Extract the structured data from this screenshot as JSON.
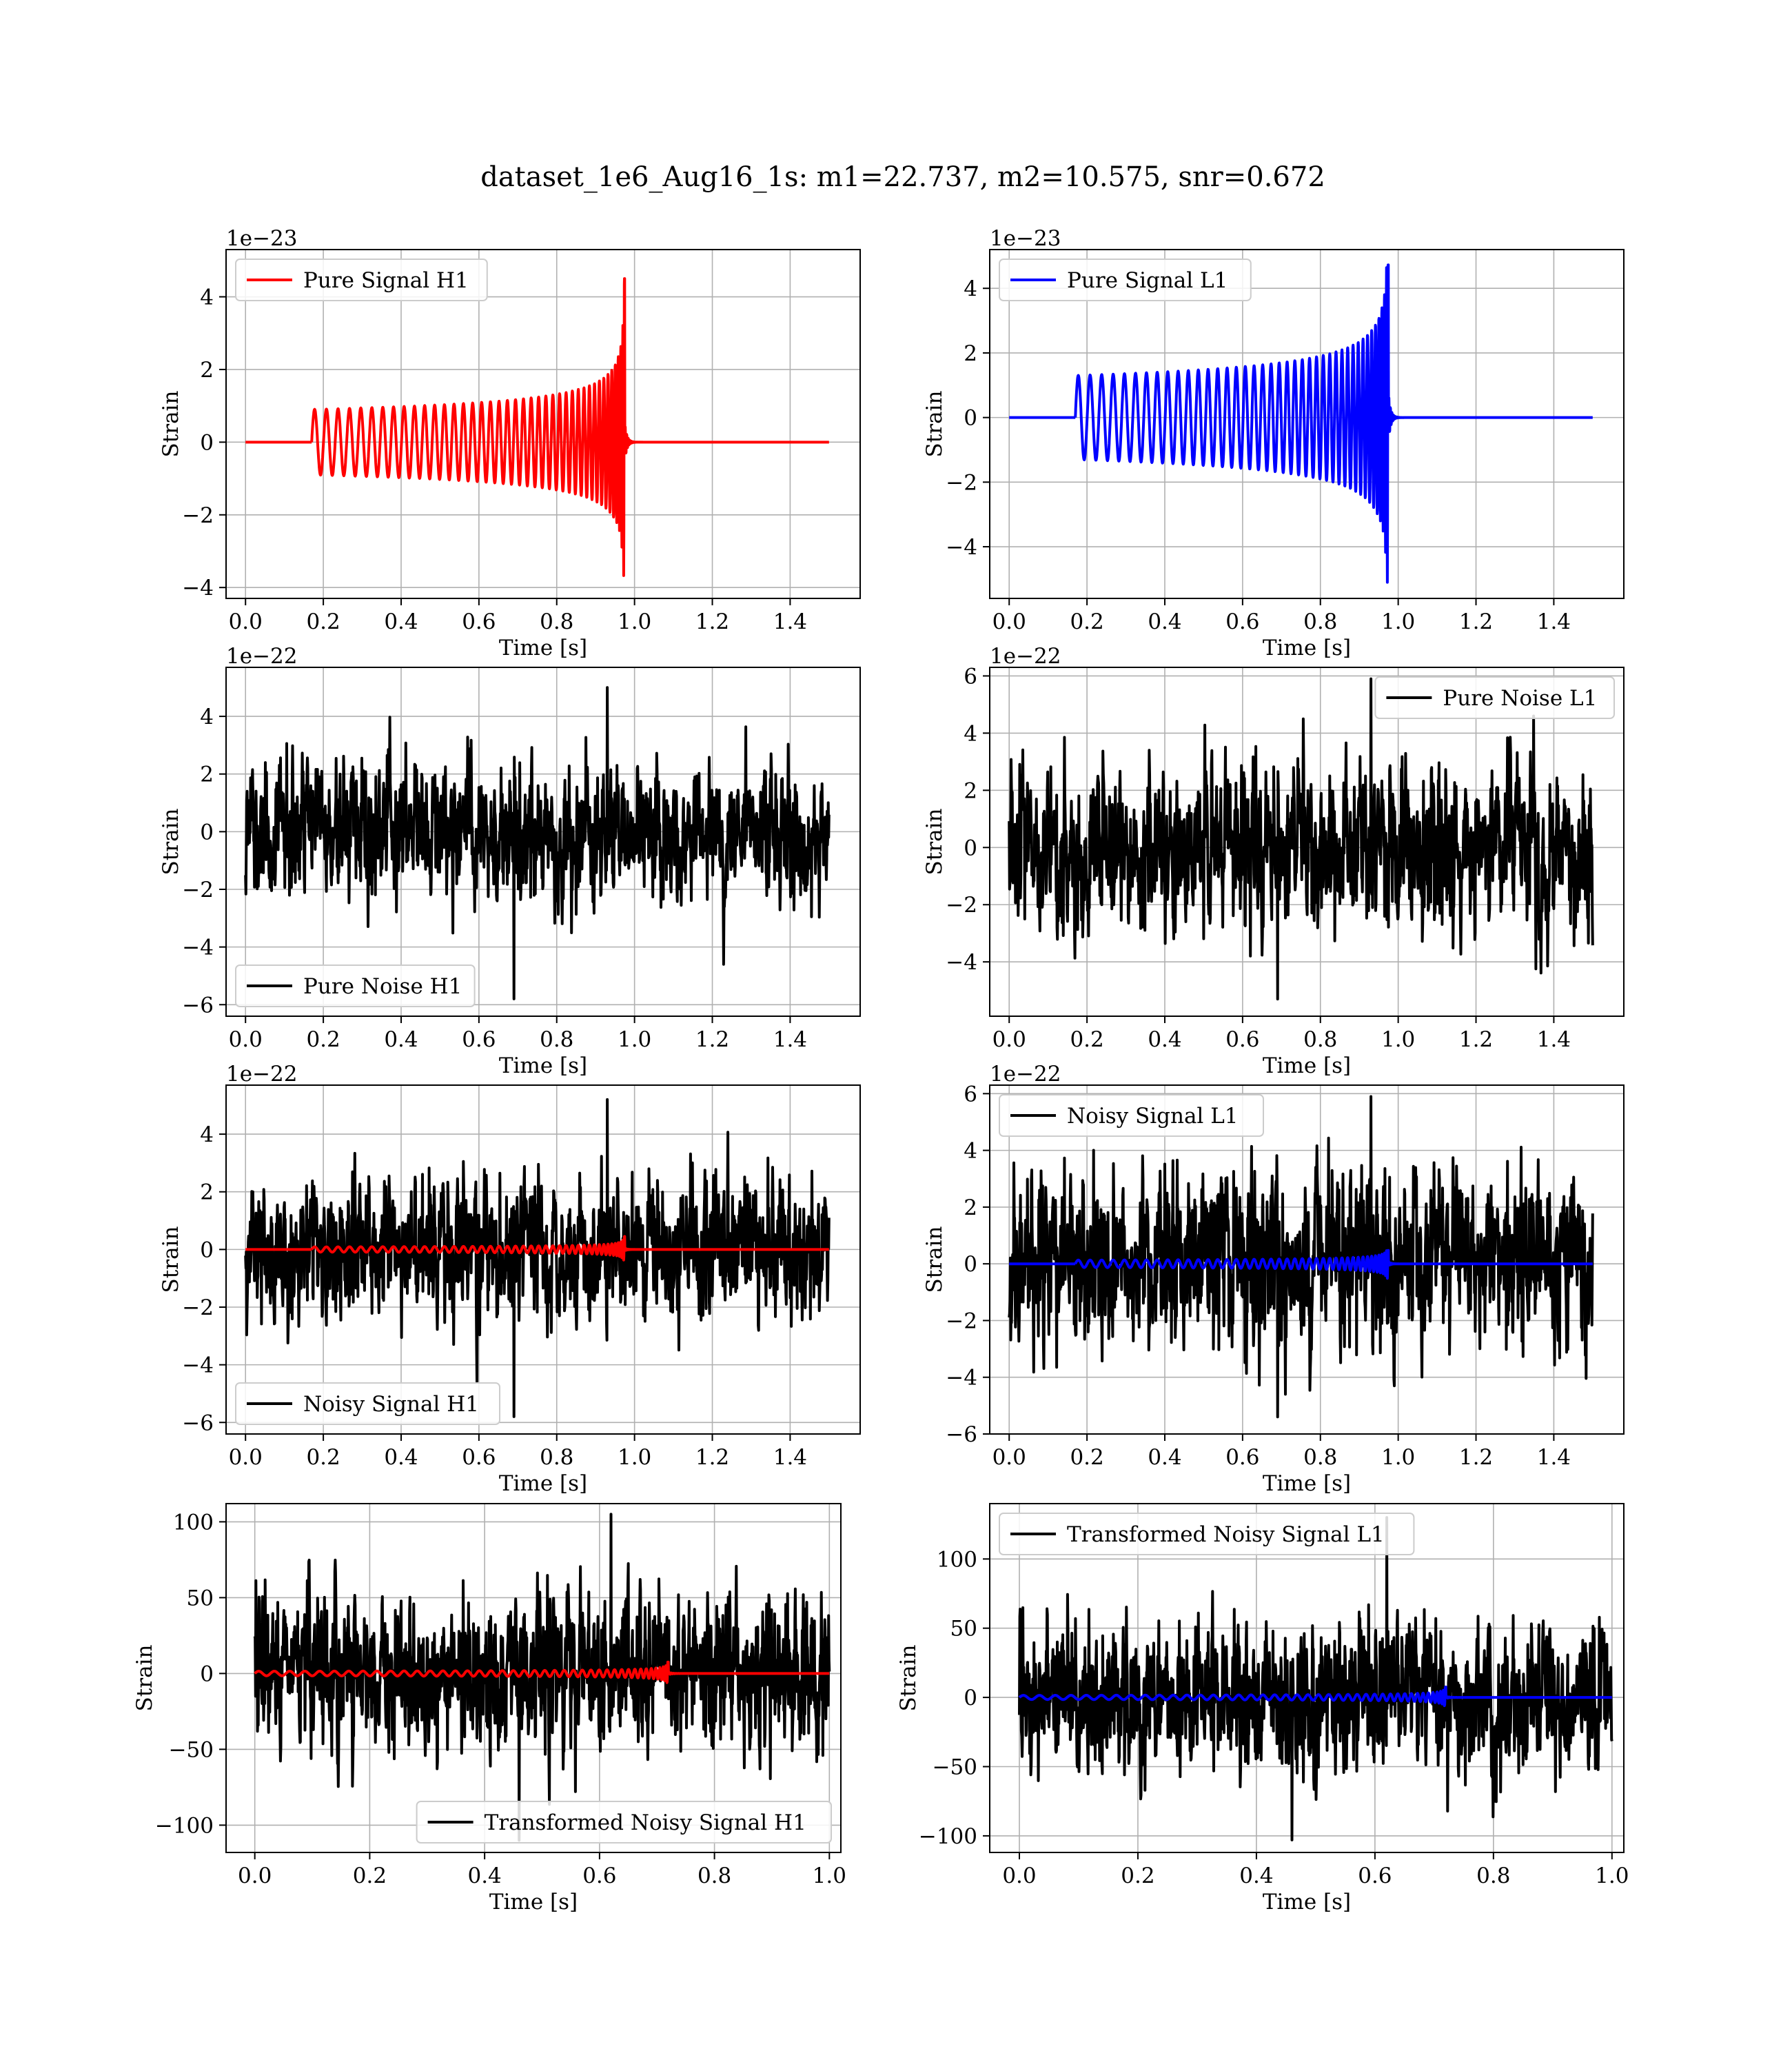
{
  "figure": {
    "title": "dataset_1e6_Aug16_1s: m1=22.737, m2=10.575, snr=0.672"
  },
  "colors": {
    "h1_signal": "#ff0000",
    "l1_signal": "#0000ff",
    "noise": "#000000",
    "grid": "#b0b0b0"
  },
  "chart_data": [
    {
      "type": "line",
      "detector": "H1",
      "xlabel": "Time [s]",
      "ylabel": "Strain",
      "offset_label": "1e−23",
      "xlim": [
        -0.05,
        1.58
      ],
      "ylim": [
        -4.3,
        5.3
      ],
      "xticks": [
        0.0,
        0.2,
        0.4,
        0.6,
        0.8,
        1.0,
        1.2,
        1.4
      ],
      "xtick_labels": [
        "0.0",
        "0.2",
        "0.4",
        "0.6",
        "0.8",
        "1.0",
        "1.2",
        "1.4"
      ],
      "yticks": [
        -4,
        -2,
        0,
        2,
        4
      ],
      "ytick_labels": [
        "−4",
        "−2",
        "0",
        "2",
        "4"
      ],
      "grid": true,
      "legend_position": "upper-left",
      "series": [
        {
          "name": "Pure Signal H1",
          "kind": "chirp",
          "color": "#ff0000",
          "t_start": 0.17,
          "t_merger": 0.975,
          "t_end": 1.5,
          "amp_start": 0.9,
          "peak_max": 5.1,
          "peak_min": -3.8,
          "cycles": 42
        }
      ]
    },
    {
      "type": "line",
      "detector": "L1",
      "xlabel": "Time [s]",
      "ylabel": "Strain",
      "offset_label": "1e−23",
      "xlim": [
        -0.05,
        1.58
      ],
      "ylim": [
        -5.6,
        5.2
      ],
      "xticks": [
        0.0,
        0.2,
        0.4,
        0.6,
        0.8,
        1.0,
        1.2,
        1.4
      ],
      "xtick_labels": [
        "0.0",
        "0.2",
        "0.4",
        "0.6",
        "0.8",
        "1.0",
        "1.2",
        "1.4"
      ],
      "yticks": [
        -4,
        -2,
        0,
        2,
        4
      ],
      "ytick_labels": [
        "−4",
        "−2",
        "0",
        "2",
        "4"
      ],
      "grid": true,
      "legend_position": "upper-left",
      "series": [
        {
          "name": "Pure Signal L1",
          "kind": "chirp",
          "color": "#0000ff",
          "t_start": 0.17,
          "t_merger": 0.975,
          "t_end": 1.5,
          "amp_start": 1.3,
          "peak_max": 4.8,
          "peak_min": -5.1,
          "cycles": 42
        }
      ]
    },
    {
      "type": "line",
      "detector": "H1",
      "xlabel": "Time [s]",
      "ylabel": "Strain",
      "offset_label": "1e−22",
      "xlim": [
        -0.05,
        1.58
      ],
      "ylim": [
        -6.4,
        5.7
      ],
      "xticks": [
        0.0,
        0.2,
        0.4,
        0.6,
        0.8,
        1.0,
        1.2,
        1.4
      ],
      "xtick_labels": [
        "0.0",
        "0.2",
        "0.4",
        "0.6",
        "0.8",
        "1.0",
        "1.2",
        "1.4"
      ],
      "yticks": [
        -6,
        -4,
        -2,
        0,
        2,
        4
      ],
      "ytick_labels": [
        "−6",
        "−4",
        "−2",
        "0",
        "2",
        "4"
      ],
      "grid": true,
      "legend_position": "lower-left",
      "series": [
        {
          "name": "Pure Noise H1",
          "kind": "noise",
          "color": "#000000",
          "t_start": 0.0,
          "t_end": 1.5,
          "ymax": 5.0,
          "ymin": -5.8,
          "typical_range": [
            -4,
            4
          ]
        }
      ]
    },
    {
      "type": "line",
      "detector": "L1",
      "xlabel": "Time [s]",
      "ylabel": "Strain",
      "offset_label": "1e−22",
      "xlim": [
        -0.05,
        1.58
      ],
      "ylim": [
        -5.9,
        6.3
      ],
      "xticks": [
        0.0,
        0.2,
        0.4,
        0.6,
        0.8,
        1.0,
        1.2,
        1.4
      ],
      "xtick_labels": [
        "0.0",
        "0.2",
        "0.4",
        "0.6",
        "0.8",
        "1.0",
        "1.2",
        "1.4"
      ],
      "yticks": [
        -4,
        -2,
        0,
        2,
        4,
        6
      ],
      "ytick_labels": [
        "−4",
        "−2",
        "0",
        "2",
        "4",
        "6"
      ],
      "grid": true,
      "legend_position": "upper-right",
      "series": [
        {
          "name": "Pure Noise L1",
          "kind": "noise",
          "color": "#000000",
          "t_start": 0.0,
          "t_end": 1.5,
          "ymax": 5.9,
          "ymin": -5.3,
          "typical_range": [
            -4,
            4
          ]
        }
      ]
    },
    {
      "type": "line",
      "detector": "H1",
      "xlabel": "Time [s]",
      "ylabel": "Strain",
      "offset_label": "1e−22",
      "xlim": [
        -0.05,
        1.58
      ],
      "ylim": [
        -6.4,
        5.7
      ],
      "xticks": [
        0.0,
        0.2,
        0.4,
        0.6,
        0.8,
        1.0,
        1.2,
        1.4
      ],
      "xtick_labels": [
        "0.0",
        "0.2",
        "0.4",
        "0.6",
        "0.8",
        "1.0",
        "1.2",
        "1.4"
      ],
      "yticks": [
        -6,
        -4,
        -2,
        0,
        2,
        4
      ],
      "ytick_labels": [
        "−6",
        "−4",
        "−2",
        "0",
        "2",
        "4"
      ],
      "grid": true,
      "legend_position": "lower-left",
      "series": [
        {
          "name": "Noisy Signal H1",
          "kind": "noise",
          "color": "#000000",
          "t_start": 0.0,
          "t_end": 1.5,
          "ymax": 5.2,
          "ymin": -5.8,
          "typical_range": [
            -4,
            4
          ]
        },
        {
          "kind": "chirp",
          "color": "#ff0000",
          "t_start": 0.17,
          "t_merger": 0.975,
          "t_end": 1.5,
          "amp_start": 0.09,
          "peak_max": 0.51,
          "peak_min": -0.38,
          "cycles": 42
        }
      ]
    },
    {
      "type": "line",
      "detector": "L1",
      "xlabel": "Time [s]",
      "ylabel": "Strain",
      "offset_label": "1e−22",
      "xlim": [
        -0.05,
        1.58
      ],
      "ylim": [
        -6.0,
        6.3
      ],
      "xticks": [
        0.0,
        0.2,
        0.4,
        0.6,
        0.8,
        1.0,
        1.2,
        1.4
      ],
      "xtick_labels": [
        "0.0",
        "0.2",
        "0.4",
        "0.6",
        "0.8",
        "1.0",
        "1.2",
        "1.4"
      ],
      "yticks": [
        -6,
        -4,
        -2,
        0,
        2,
        4,
        6
      ],
      "ytick_labels": [
        "−6",
        "−4",
        "−2",
        "0",
        "2",
        "4",
        "6"
      ],
      "grid": true,
      "legend_position": "upper-left",
      "series": [
        {
          "name": "Noisy Signal L1",
          "kind": "noise",
          "color": "#000000",
          "t_start": 0.0,
          "t_end": 1.5,
          "ymax": 5.9,
          "ymin": -5.4,
          "typical_range": [
            -4,
            4
          ]
        },
        {
          "kind": "chirp",
          "color": "#0000ff",
          "t_start": 0.17,
          "t_merger": 0.975,
          "t_end": 1.5,
          "amp_start": 0.13,
          "peak_max": 0.48,
          "peak_min": -0.51,
          "cycles": 42
        }
      ]
    },
    {
      "type": "line",
      "detector": "H1",
      "xlabel": "Time [s]",
      "ylabel": "Strain",
      "offset_label": "",
      "xlim": [
        -0.05,
        1.02
      ],
      "ylim": [
        -118,
        112
      ],
      "xticks": [
        0.0,
        0.2,
        0.4,
        0.6,
        0.8,
        1.0
      ],
      "xtick_labels": [
        "0.0",
        "0.2",
        "0.4",
        "0.6",
        "0.8",
        "1.0"
      ],
      "yticks": [
        -100,
        -50,
        0,
        50,
        100
      ],
      "ytick_labels": [
        "−100",
        "−50",
        "0",
        "50",
        "100"
      ],
      "grid": true,
      "legend_position": "lower-right",
      "series": [
        {
          "name": "Transformed Noisy Signal H1",
          "kind": "noise",
          "color": "#000000",
          "t_start": 0.0,
          "t_end": 1.0,
          "ymax": 105,
          "ymin": -110,
          "typical_range": [
            -75,
            75
          ]
        },
        {
          "kind": "chirp",
          "color": "#ff0000",
          "t_start": 0.0,
          "t_merger": 0.72,
          "t_end": 1.0,
          "amp_start": 1.5,
          "peak_max": 13,
          "peak_min": -10,
          "cycles": 42
        }
      ]
    },
    {
      "type": "line",
      "detector": "L1",
      "xlabel": "Time [s]",
      "ylabel": "Strain",
      "offset_label": "",
      "xlim": [
        -0.05,
        1.02
      ],
      "ylim": [
        -112,
        140
      ],
      "xticks": [
        0.0,
        0.2,
        0.4,
        0.6,
        0.8,
        1.0
      ],
      "xtick_labels": [
        "0.0",
        "0.2",
        "0.4",
        "0.6",
        "0.8",
        "1.0"
      ],
      "yticks": [
        -100,
        -50,
        0,
        50,
        100
      ],
      "ytick_labels": [
        "−100",
        "−50",
        "0",
        "50",
        "100"
      ],
      "grid": true,
      "legend_position": "upper-left",
      "series": [
        {
          "name": "Transformed Noisy Signal L1",
          "kind": "noise",
          "color": "#000000",
          "t_start": 0.0,
          "t_end": 1.0,
          "ymax": 130,
          "ymin": -103,
          "typical_range": [
            -75,
            75
          ]
        },
        {
          "kind": "chirp",
          "color": "#0000ff",
          "t_start": 0.0,
          "t_merger": 0.72,
          "t_end": 1.0,
          "amp_start": 1.5,
          "peak_max": 12,
          "peak_min": -11,
          "cycles": 42
        }
      ]
    }
  ]
}
